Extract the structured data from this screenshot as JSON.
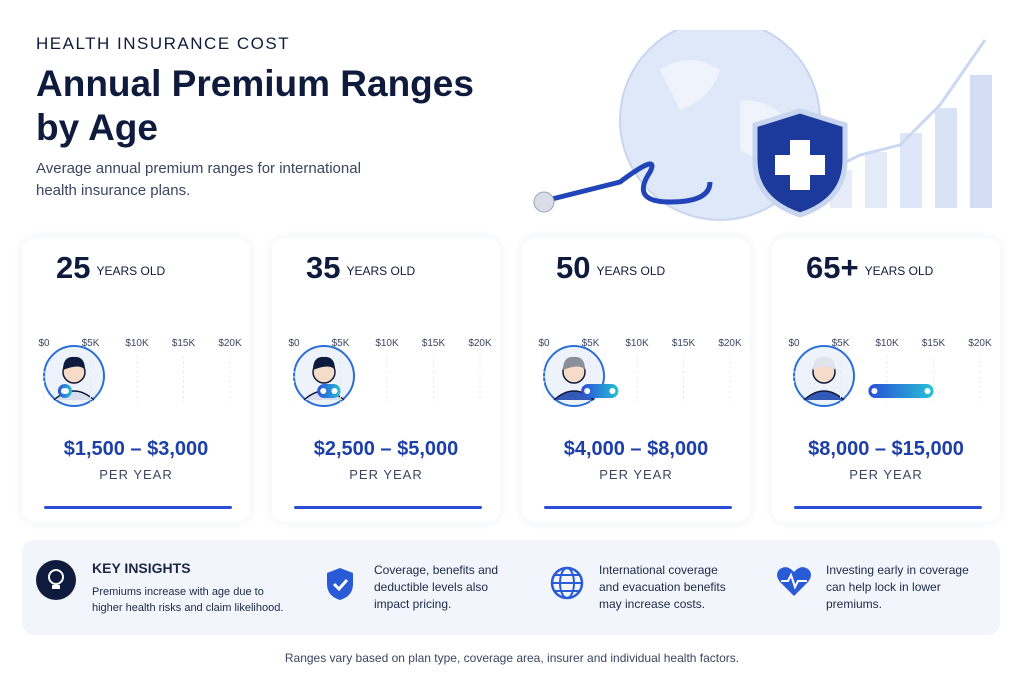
{
  "header": {
    "eyebrow": "HEALTH INSURANCE COST",
    "title": "Annual Premium Ranges by Age",
    "subtitle": "Average annual premium ranges for international health insurance plans."
  },
  "chart_data": [
    {
      "type": "range",
      "title": "25",
      "subtitle": "YEARS OLD",
      "xlim": [
        0,
        20000
      ],
      "xticks": [
        {
          "value": 0,
          "label": "$0"
        },
        {
          "value": 5000,
          "label": "$5K"
        },
        {
          "value": 10000,
          "label": "$10K"
        },
        {
          "value": 15000,
          "label": "$15K"
        },
        {
          "value": 20000,
          "label": "$20K"
        }
      ],
      "range": [
        1500,
        3000
      ],
      "range_label": "$1,500 – $3,000",
      "unit_label": "PER YEAR",
      "color": "#2a4fd6"
    },
    {
      "type": "range",
      "title": "35",
      "subtitle": "YEARS OLD",
      "xlim": [
        0,
        20000
      ],
      "xticks": [
        {
          "value": 0,
          "label": "$0"
        },
        {
          "value": 5000,
          "label": "$5K"
        },
        {
          "value": 10000,
          "label": "$10K"
        },
        {
          "value": 15000,
          "label": "$15K"
        },
        {
          "value": 20000,
          "label": "$20K"
        }
      ],
      "range": [
        2500,
        5000
      ],
      "range_label": "$2,500 – $5,000",
      "unit_label": "PER YEAR",
      "color": "#2a4fd6"
    },
    {
      "type": "range",
      "title": "50",
      "subtitle": "YEARS OLD",
      "xlim": [
        0,
        20000
      ],
      "xticks": [
        {
          "value": 0,
          "label": "$0"
        },
        {
          "value": 5000,
          "label": "$5K"
        },
        {
          "value": 10000,
          "label": "$10K"
        },
        {
          "value": 15000,
          "label": "$15K"
        },
        {
          "value": 20000,
          "label": "$20K"
        }
      ],
      "range": [
        4000,
        8000
      ],
      "range_label": "$4,000 – $8,000",
      "unit_label": "PER YEAR",
      "color": "#2a4fd6"
    },
    {
      "type": "range",
      "title": "65+",
      "subtitle": "YEARS OLD",
      "xlim": [
        0,
        20000
      ],
      "xticks": [
        {
          "value": 0,
          "label": "$0"
        },
        {
          "value": 5000,
          "label": "$5K"
        },
        {
          "value": 10000,
          "label": "$10K"
        },
        {
          "value": 15000,
          "label": "$15K"
        },
        {
          "value": 20000,
          "label": "$20K"
        }
      ],
      "range": [
        8000,
        15000
      ],
      "range_label": "$8,000 – $15,000",
      "unit_label": "PER YEAR",
      "color": "#2a4fd6"
    }
  ],
  "insights": {
    "title": "KEY INSIGHTS",
    "items": [
      "Premiums increase with age due to higher health risks and claim likelihood.",
      "Coverage, benefits and deductible levels also impact pricing.",
      "International coverage and evacuation benefits may increase costs.",
      "Investing early in coverage can help lock in lower premiums."
    ]
  },
  "footer": "Ranges vary based on plan type, coverage area, insurer and individual health factors."
}
